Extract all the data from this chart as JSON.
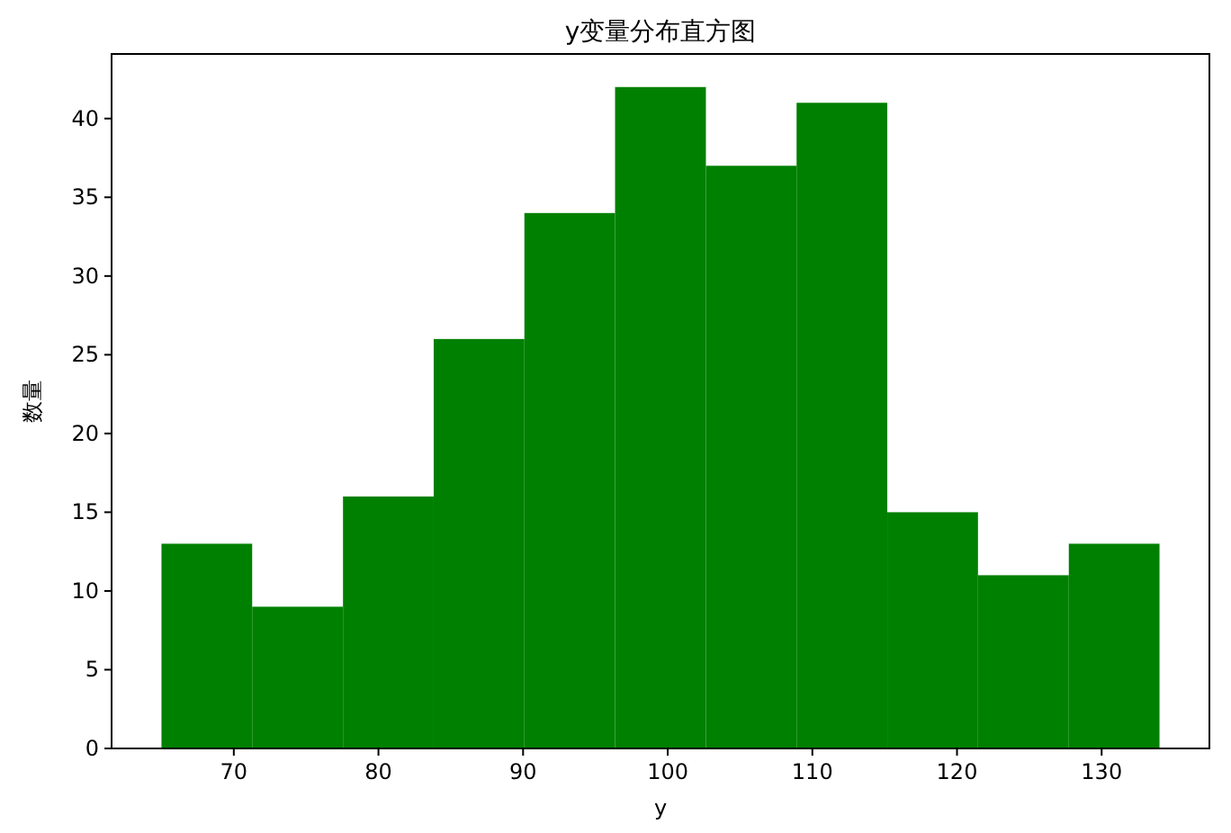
{
  "chart_data": {
    "type": "histogram",
    "title": "y变量分布直方图",
    "xlabel": "y",
    "ylabel": "数量",
    "bins": [
      65,
      71.27,
      77.55,
      83.82,
      90.09,
      96.36,
      102.64,
      108.91,
      115.18,
      121.45,
      127.73,
      134
    ],
    "values": [
      13,
      9,
      16,
      26,
      34,
      42,
      37,
      41,
      15,
      11,
      13
    ],
    "color": "#008000",
    "xlim": [
      61.55,
      137.45
    ],
    "ylim": [
      0,
      44.1
    ],
    "xticks": [
      70,
      80,
      90,
      100,
      110,
      120,
      130
    ],
    "yticks": [
      0,
      5,
      10,
      15,
      20,
      25,
      30,
      35,
      40
    ]
  }
}
